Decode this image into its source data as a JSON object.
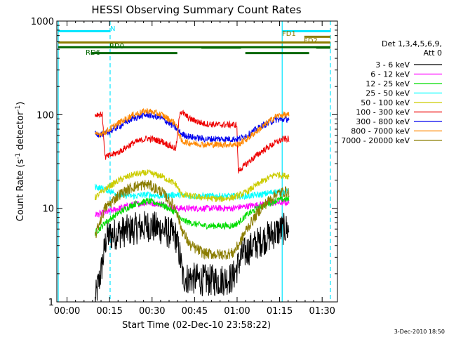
{
  "chart_data": {
    "type": "line",
    "title": "HESSI Observing Summary Count Rates",
    "xlabel": "Start Time (02-Dec-10 23:58:22)",
    "ylabel_main": "Count Rate (s",
    "ylabel_sup1": "-1",
    "ylabel_mid": " detector",
    "ylabel_sup2": "-1",
    "ylabel_end": ")",
    "footer": "3-Dec-2010 18:50",
    "x_unit": "minutes since 23:58:22",
    "xlim": [
      -2,
      97
    ],
    "ylim": [
      1,
      1000
    ],
    "yscale": "log",
    "x_ticks": [
      {
        "label": "00:00",
        "value": 1.6
      },
      {
        "label": "00:15",
        "value": 16.6
      },
      {
        "label": "00:30",
        "value": 31.6
      },
      {
        "label": "00:45",
        "value": 46.6
      },
      {
        "label": "01:00",
        "value": 61.6
      },
      {
        "label": "01:15",
        "value": 76.6
      },
      {
        "label": "01:30",
        "value": 91.6
      }
    ],
    "y_ticks": [
      {
        "label": "1",
        "value": 1
      },
      {
        "label": "10",
        "value": 10
      },
      {
        "label": "100",
        "value": 100
      },
      {
        "label": "1000",
        "value": 1000
      }
    ],
    "legend": {
      "placement": "right",
      "title": "Det 1,3,4,5,6,9,",
      "subtitle": "Att 0"
    },
    "series": [
      {
        "name": "3 - 6 keV",
        "color": "#000000",
        "values": [
          [
            11.5,
            1
          ],
          [
            12.5,
            1.5
          ],
          [
            13.5,
            2
          ],
          [
            15.5,
            5
          ],
          [
            20,
            5.5
          ],
          [
            25,
            6
          ],
          [
            30,
            6.5
          ],
          [
            35,
            6
          ],
          [
            40,
            5
          ],
          [
            41.5,
            3
          ],
          [
            42.5,
            1.8
          ],
          [
            45,
            1.8
          ],
          [
            50,
            1.7
          ],
          [
            55,
            1.7
          ],
          [
            60,
            1.8
          ],
          [
            62,
            2.5
          ],
          [
            63,
            3
          ],
          [
            65,
            3.5
          ],
          [
            70,
            4.5
          ],
          [
            75,
            5.5
          ],
          [
            78,
            6
          ],
          [
            80,
            6
          ]
        ]
      },
      {
        "name": "6 - 12 keV",
        "color": "#ff00ff",
        "values": [
          [
            11.5,
            8.5
          ],
          [
            15,
            9
          ],
          [
            20,
            10
          ],
          [
            25,
            11
          ],
          [
            30,
            11.5
          ],
          [
            35,
            11
          ],
          [
            40,
            10
          ],
          [
            45,
            10
          ],
          [
            50,
            10
          ],
          [
            55,
            10
          ],
          [
            60,
            10
          ],
          [
            65,
            10.5
          ],
          [
            70,
            11
          ],
          [
            75,
            11.5
          ],
          [
            80,
            11.5
          ]
        ]
      },
      {
        "name": "12 - 25 keV",
        "color": "#00dd00",
        "values": [
          [
            11.5,
            5.5
          ],
          [
            13,
            6
          ],
          [
            15,
            7
          ],
          [
            20,
            9
          ],
          [
            25,
            11
          ],
          [
            30,
            12
          ],
          [
            35,
            11
          ],
          [
            40,
            9
          ],
          [
            42,
            7.5
          ],
          [
            45,
            7
          ],
          [
            50,
            6.5
          ],
          [
            55,
            6.5
          ],
          [
            60,
            6.5
          ],
          [
            62,
            7
          ],
          [
            65,
            8.5
          ],
          [
            70,
            10.5
          ],
          [
            75,
            12
          ],
          [
            78,
            12.5
          ],
          [
            80,
            12.5
          ]
        ]
      },
      {
        "name": "25 - 50 keV",
        "color": "#00ffff",
        "values": [
          [
            11.5,
            17
          ],
          [
            15,
            16
          ],
          [
            20,
            14
          ],
          [
            25,
            13.5
          ],
          [
            30,
            14
          ],
          [
            35,
            13.5
          ],
          [
            40,
            14
          ],
          [
            45,
            13.5
          ],
          [
            50,
            13.5
          ],
          [
            55,
            13.5
          ],
          [
            60,
            13.5
          ],
          [
            65,
            13.5
          ],
          [
            70,
            14
          ],
          [
            75,
            15
          ],
          [
            80,
            15
          ]
        ]
      },
      {
        "name": "50 - 100 keV",
        "color": "#cccc00",
        "values": [
          [
            11.5,
            13
          ],
          [
            15,
            16
          ],
          [
            20,
            20
          ],
          [
            25,
            23
          ],
          [
            30,
            24
          ],
          [
            35,
            22
          ],
          [
            40,
            18
          ],
          [
            42,
            14
          ],
          [
            45,
            13.5
          ],
          [
            50,
            13
          ],
          [
            55,
            12.5
          ],
          [
            60,
            13
          ],
          [
            63,
            14
          ],
          [
            65,
            15
          ],
          [
            70,
            19
          ],
          [
            75,
            23
          ],
          [
            80,
            22
          ]
        ]
      },
      {
        "name": "100 - 300 keV",
        "color": "#ee0000",
        "values": [
          [
            11.5,
            100
          ],
          [
            14,
            102
          ],
          [
            15,
            35
          ],
          [
            20,
            40
          ],
          [
            25,
            50
          ],
          [
            30,
            56
          ],
          [
            35,
            52
          ],
          [
            40,
            43
          ],
          [
            41.5,
            110
          ],
          [
            45,
            90
          ],
          [
            50,
            80
          ],
          [
            55,
            78
          ],
          [
            60,
            78
          ],
          [
            61.5,
            78
          ],
          [
            62,
            25
          ],
          [
            65,
            30
          ],
          [
            70,
            40
          ],
          [
            75,
            50
          ],
          [
            78,
            55
          ],
          [
            80,
            55
          ]
        ]
      },
      {
        "name": "300 - 800 keV",
        "color": "#0000ee",
        "values": [
          [
            11.5,
            62
          ],
          [
            15,
            62
          ],
          [
            20,
            75
          ],
          [
            25,
            92
          ],
          [
            30,
            100
          ],
          [
            35,
            92
          ],
          [
            40,
            72
          ],
          [
            42,
            62
          ],
          [
            45,
            58
          ],
          [
            50,
            55
          ],
          [
            55,
            55
          ],
          [
            60,
            55
          ],
          [
            62,
            55
          ],
          [
            65,
            60
          ],
          [
            70,
            75
          ],
          [
            75,
            88
          ],
          [
            80,
            90
          ]
        ]
      },
      {
        "name": "800 - 7000 keV",
        "color": "#ff8800",
        "values": [
          [
            11.5,
            60
          ],
          [
            15,
            65
          ],
          [
            20,
            82
          ],
          [
            25,
            100
          ],
          [
            30,
            110
          ],
          [
            35,
            100
          ],
          [
            40,
            80
          ],
          [
            42,
            52
          ],
          [
            45,
            50
          ],
          [
            50,
            48
          ],
          [
            55,
            48
          ],
          [
            60,
            48
          ],
          [
            62,
            48
          ],
          [
            65,
            55
          ],
          [
            70,
            72
          ],
          [
            75,
            95
          ],
          [
            78,
            100
          ],
          [
            80,
            98
          ]
        ]
      },
      {
        "name": "7000 - 20000 keV",
        "color": "#8b7d00",
        "values": [
          [
            11.5,
            5
          ],
          [
            13,
            7
          ],
          [
            15,
            10
          ],
          [
            20,
            14
          ],
          [
            25,
            17
          ],
          [
            30,
            18
          ],
          [
            35,
            15
          ],
          [
            40,
            10
          ],
          [
            42,
            6
          ],
          [
            45,
            4
          ],
          [
            50,
            3.3
          ],
          [
            55,
            3.2
          ],
          [
            60,
            3.3
          ],
          [
            62,
            4
          ],
          [
            65,
            6
          ],
          [
            70,
            10
          ],
          [
            75,
            14
          ],
          [
            78,
            15
          ],
          [
            80,
            15
          ]
        ]
      }
    ],
    "events": [
      {
        "label": "N",
        "color": "#00e5ff",
        "start": -1.5,
        "end": 16.8,
        "y": 780,
        "label_pos": 17.5
      },
      {
        "label": "N",
        "color": "#00e5ff",
        "start": 77.5,
        "end": 94.5,
        "y": 780,
        "label_pos": null
      },
      {
        "label": "FD1",
        "color": "#8b7d00",
        "start": 85.3,
        "end": 94.5,
        "y": 680,
        "label_pos": 80.5
      },
      {
        "label": "FD2",
        "color": "#8b7d00",
        "start": -1.5,
        "end": 94.5,
        "y": 590,
        "label_pos": 89.5
      },
      {
        "label": "RD0",
        "color": "#006600",
        "start": -1.5,
        "end": 94.5,
        "y": 525,
        "label_pos": 17.5
      },
      {
        "label": "RD6",
        "color": "#006600",
        "start": 10,
        "end": 40.5,
        "y": 455,
        "label_pos": 8.5
      }
    ],
    "vlines": [
      {
        "x": -1.5,
        "color": "#00e5ff",
        "style": "solid"
      },
      {
        "x": 16.8,
        "color": "#00e5ff",
        "style": "dashed"
      },
      {
        "x": 77.5,
        "color": "#00e5ff",
        "style": "solid"
      },
      {
        "x": 94.5,
        "color": "#00e5ff",
        "style": "dashed"
      }
    ],
    "gridlines": false
  }
}
